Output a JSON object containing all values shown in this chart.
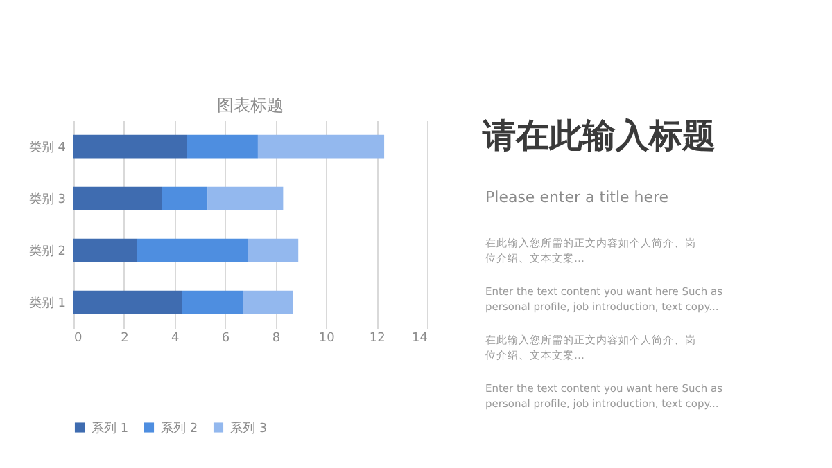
{
  "chart_data": [
    {
      "type": "bar",
      "orientation": "horizontal",
      "stacked": true,
      "title": "图表标题",
      "categories": [
        "类别 4",
        "类别 3",
        "类别 2",
        "类别 1"
      ],
      "series": [
        {
          "name": "系列 1",
          "color": "#3f6cb0",
          "values": [
            4.5,
            3.5,
            2.5,
            4.3
          ]
        },
        {
          "name": "系列 2",
          "color": "#4e8ee0",
          "values": [
            2.8,
            1.8,
            4.4,
            2.4
          ]
        },
        {
          "name": "系列 3",
          "color": "#93b8ee",
          "values": [
            5.0,
            3.0,
            2.0,
            2.0
          ]
        }
      ],
      "xlim": [
        0,
        14
      ],
      "xticks": [
        0,
        2,
        4,
        6,
        8,
        10,
        12,
        14
      ],
      "grid": "x",
      "legend": "bottom"
    },
    {
      "type": "other",
      "title": "请在此输入标题",
      "subtitle": "Please enter a title here",
      "annotations": [
        "在此输入您所需的正文内容如个人简介、岗位介绍、文本文案…",
        "Enter the text content you want here Such as\npersonal profile, job introduction, text copy...",
        "在此输入您所需的正文内容如个人简介、岗位介绍、文本文案…",
        "Enter the text content you want here Such as\npersonal profile, job introduction, text copy..."
      ]
    }
  ]
}
